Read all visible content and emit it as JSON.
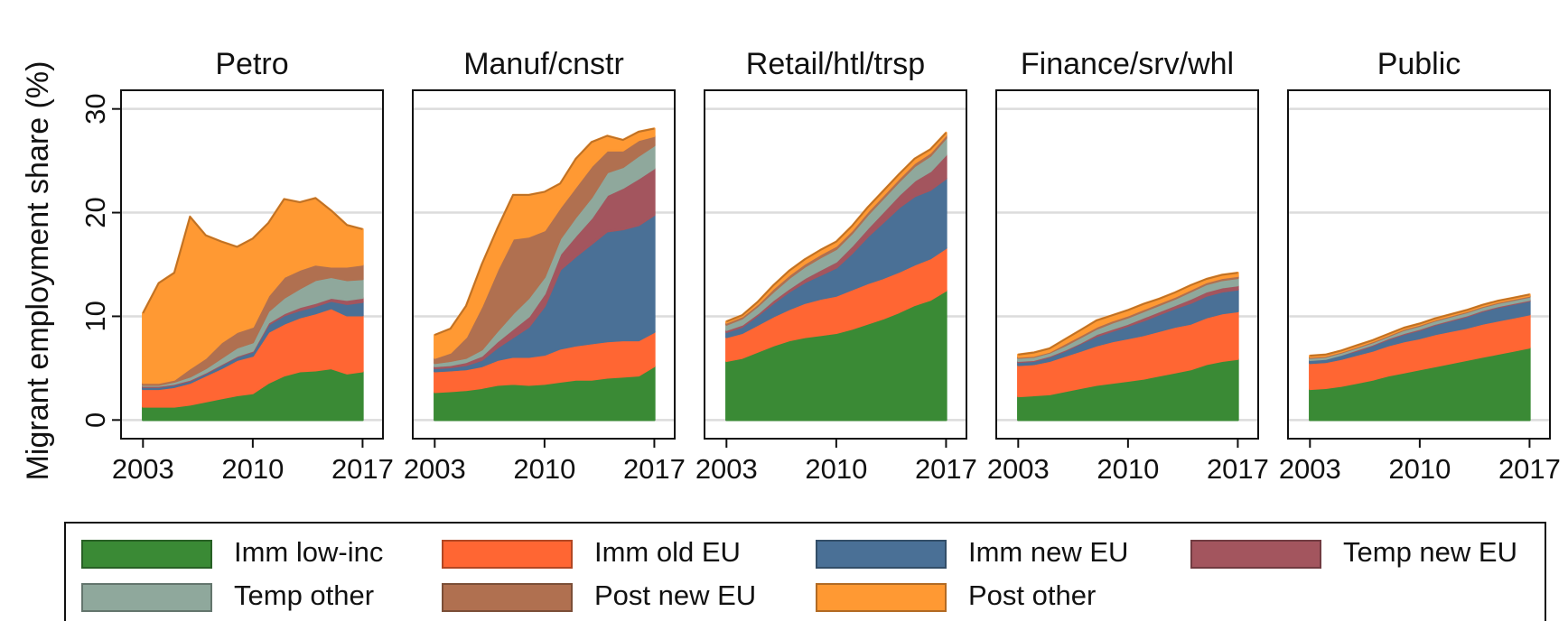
{
  "chart_data": [
    {
      "type": "area",
      "title": "Petro",
      "ylabel": "Migrant employment share (%)",
      "stacked": true,
      "grid": true,
      "x": [
        2003,
        2004,
        2005,
        2006,
        2007,
        2008,
        2009,
        2010,
        2011,
        2012,
        2013,
        2014,
        2015,
        2016,
        2017
      ],
      "xlim": [
        2001.6,
        2018.3
      ],
      "ylim": [
        -1.8,
        31.8
      ],
      "xticks": [
        2003,
        2010,
        2017
      ],
      "yticks": [
        0,
        10,
        20,
        30
      ],
      "series": [
        {
          "name": "Imm low-inc",
          "color": "#3a8a35",
          "values": [
            1.3,
            1.3,
            1.3,
            1.5,
            1.8,
            2.1,
            2.4,
            2.6,
            3.6,
            4.3,
            4.7,
            4.8,
            5.0,
            4.5,
            4.7
          ]
        },
        {
          "name": "Imm old EU",
          "color": "#ff6633",
          "values": [
            1.7,
            1.7,
            1.9,
            2.1,
            2.5,
            2.9,
            3.4,
            3.6,
            4.9,
            5.0,
            5.2,
            5.5,
            5.8,
            5.6,
            5.4
          ]
        },
        {
          "name": "Imm new EU",
          "color": "#4a7096",
          "values": [
            0.2,
            0.2,
            0.2,
            0.2,
            0.2,
            0.3,
            0.3,
            0.4,
            0.7,
            0.8,
            0.7,
            0.7,
            0.7,
            1.1,
            1.3
          ]
        },
        {
          "name": "Temp new EU",
          "color": "#a3555e",
          "values": [
            0.1,
            0.1,
            0.1,
            0.1,
            0.1,
            0.1,
            0.1,
            0.1,
            0.2,
            0.2,
            0.3,
            0.3,
            0.3,
            0.4,
            0.4
          ]
        },
        {
          "name": "Temp other",
          "color": "#8fa89c",
          "values": [
            0.1,
            0.1,
            0.2,
            0.3,
            0.4,
            0.6,
            0.8,
            0.8,
            1.1,
            1.5,
            1.8,
            2.2,
            2.0,
            1.9,
            1.8
          ]
        },
        {
          "name": "Post new EU",
          "color": "#b07050",
          "values": [
            0.2,
            0.2,
            0.2,
            0.8,
            1.0,
            1.5,
            1.5,
            1.5,
            1.5,
            2.0,
            1.8,
            1.5,
            1.0,
            1.3,
            1.4
          ]
        },
        {
          "name": "Post other",
          "color": "#ff9933",
          "values": [
            6.7,
            9.6,
            10.3,
            14.6,
            11.8,
            9.7,
            8.2,
            8.5,
            7.0,
            7.5,
            6.5,
            6.4,
            5.4,
            4.0,
            3.4
          ]
        }
      ]
    },
    {
      "type": "area",
      "title": "Manuf/cnstr",
      "stacked": true,
      "grid": true,
      "x": [
        2003,
        2004,
        2005,
        2006,
        2007,
        2008,
        2009,
        2010,
        2011,
        2012,
        2013,
        2014,
        2015,
        2016,
        2017
      ],
      "xlim": [
        2001.6,
        2018.3
      ],
      "ylim": [
        -1.8,
        31.8
      ],
      "xticks": [
        2003,
        2010,
        2017
      ],
      "yticks": [
        0,
        10,
        20,
        30
      ],
      "series": [
        {
          "name": "Imm low-inc",
          "color": "#3a8a35",
          "values": [
            2.7,
            2.8,
            2.9,
            3.1,
            3.4,
            3.5,
            3.4,
            3.5,
            3.7,
            3.9,
            3.9,
            4.1,
            4.2,
            4.3,
            5.2
          ]
        },
        {
          "name": "Imm old EU",
          "color": "#ff6633",
          "values": [
            2.0,
            2.0,
            2.0,
            2.1,
            2.4,
            2.6,
            2.7,
            2.8,
            3.2,
            3.3,
            3.5,
            3.5,
            3.5,
            3.4,
            3.3
          ]
        },
        {
          "name": "Imm new EU",
          "color": "#4a7096",
          "values": [
            0.3,
            0.3,
            0.4,
            0.6,
            1.2,
            1.9,
            2.9,
            4.7,
            7.6,
            8.6,
            9.6,
            10.6,
            10.7,
            11.1,
            11.3
          ]
        },
        {
          "name": "Temp new EU",
          "color": "#a3555e",
          "values": [
            0.2,
            0.2,
            0.3,
            0.4,
            0.6,
            0.8,
            1.0,
            1.2,
            1.5,
            2.0,
            2.5,
            3.5,
            4.0,
            4.5,
            4.5
          ]
        },
        {
          "name": "Temp other",
          "color": "#8fa89c",
          "values": [
            0.3,
            0.4,
            0.4,
            0.6,
            1.0,
            1.5,
            1.8,
            1.6,
            1.5,
            1.8,
            2.0,
            2.2,
            2.0,
            2.2,
            2.2
          ]
        },
        {
          "name": "Post new EU",
          "color": "#b07050",
          "values": [
            0.5,
            0.8,
            2.0,
            4.2,
            5.9,
            7.2,
            5.9,
            4.5,
            3.0,
            2.9,
            3.0,
            2.1,
            1.6,
            1.5,
            0.9
          ]
        },
        {
          "name": "Post other",
          "color": "#ff9933",
          "values": [
            2.2,
            2.3,
            3.0,
            4.0,
            4.0,
            4.2,
            4.0,
            3.7,
            2.3,
            2.7,
            2.3,
            1.4,
            1.0,
            0.8,
            0.7
          ]
        }
      ]
    },
    {
      "type": "area",
      "title": "Retail/htl/trsp",
      "stacked": true,
      "grid": true,
      "x": [
        2003,
        2004,
        2005,
        2006,
        2007,
        2008,
        2009,
        2010,
        2011,
        2012,
        2013,
        2014,
        2015,
        2016,
        2017
      ],
      "xlim": [
        2001.6,
        2018.3
      ],
      "ylim": [
        -1.8,
        31.8
      ],
      "xticks": [
        2003,
        2010,
        2017
      ],
      "yticks": [
        0,
        10,
        20,
        30
      ],
      "series": [
        {
          "name": "Imm low-inc",
          "color": "#3a8a35",
          "values": [
            5.7,
            6.0,
            6.6,
            7.2,
            7.7,
            8.0,
            8.2,
            8.4,
            8.8,
            9.3,
            9.8,
            10.4,
            11.1,
            11.6,
            12.5
          ]
        },
        {
          "name": "Imm old EU",
          "color": "#ff6633",
          "values": [
            2.3,
            2.4,
            2.6,
            2.8,
            3.0,
            3.3,
            3.5,
            3.6,
            3.8,
            3.9,
            3.9,
            3.9,
            3.9,
            4.0,
            4.1
          ]
        },
        {
          "name": "Imm new EU",
          "color": "#4a7096",
          "values": [
            0.5,
            0.6,
            0.9,
            1.3,
            1.7,
            2.0,
            2.3,
            2.7,
            3.5,
            4.5,
            5.4,
            6.2,
            6.6,
            6.6,
            6.7
          ]
        },
        {
          "name": "Temp new EU",
          "color": "#a3555e",
          "values": [
            0.2,
            0.2,
            0.2,
            0.3,
            0.3,
            0.4,
            0.5,
            0.6,
            0.7,
            0.8,
            1.0,
            1.2,
            1.5,
            1.8,
            2.3
          ]
        },
        {
          "name": "Temp other",
          "color": "#8fa89c",
          "values": [
            0.5,
            0.6,
            0.7,
            0.8,
            1.0,
            1.1,
            1.2,
            1.2,
            1.2,
            1.3,
            1.3,
            1.3,
            1.4,
            1.5,
            1.6
          ]
        },
        {
          "name": "Post new EU",
          "color": "#b07050",
          "values": [
            0.2,
            0.2,
            0.2,
            0.3,
            0.3,
            0.3,
            0.3,
            0.3,
            0.3,
            0.3,
            0.3,
            0.3,
            0.3,
            0.3,
            0.3
          ]
        },
        {
          "name": "Post other",
          "color": "#ff9933",
          "values": [
            0.1,
            0.1,
            0.2,
            0.3,
            0.4,
            0.4,
            0.4,
            0.4,
            0.4,
            0.4,
            0.4,
            0.4,
            0.4,
            0.3,
            0.2
          ]
        }
      ]
    },
    {
      "type": "area",
      "title": "Finance/srv/whl",
      "stacked": true,
      "grid": true,
      "x": [
        2003,
        2004,
        2005,
        2006,
        2007,
        2008,
        2009,
        2010,
        2011,
        2012,
        2013,
        2014,
        2015,
        2016,
        2017
      ],
      "xlim": [
        2001.6,
        2018.3
      ],
      "ylim": [
        -1.8,
        31.8
      ],
      "xticks": [
        2003,
        2010,
        2017
      ],
      "yticks": [
        0,
        10,
        20,
        30
      ],
      "series": [
        {
          "name": "Imm low-inc",
          "color": "#3a8a35",
          "values": [
            2.3,
            2.4,
            2.5,
            2.8,
            3.1,
            3.4,
            3.6,
            3.8,
            4.0,
            4.3,
            4.6,
            4.9,
            5.4,
            5.7,
            5.9
          ]
        },
        {
          "name": "Imm old EU",
          "color": "#ff6633",
          "values": [
            3.0,
            3.0,
            3.2,
            3.4,
            3.6,
            3.8,
            4.0,
            4.1,
            4.2,
            4.3,
            4.4,
            4.4,
            4.5,
            4.6,
            4.6
          ]
        },
        {
          "name": "Imm new EU",
          "color": "#4a7096",
          "values": [
            0.3,
            0.3,
            0.4,
            0.5,
            0.7,
            0.9,
            1.0,
            1.2,
            1.4,
            1.6,
            1.8,
            2.0,
            2.1,
            2.1,
            2.1
          ]
        },
        {
          "name": "Temp new EU",
          "color": "#a3555e",
          "values": [
            0.1,
            0.1,
            0.1,
            0.1,
            0.1,
            0.2,
            0.2,
            0.2,
            0.3,
            0.3,
            0.3,
            0.4,
            0.4,
            0.4,
            0.4
          ]
        },
        {
          "name": "Temp other",
          "color": "#8fa89c",
          "values": [
            0.3,
            0.3,
            0.3,
            0.4,
            0.5,
            0.5,
            0.6,
            0.6,
            0.6,
            0.6,
            0.6,
            0.7,
            0.7,
            0.7,
            0.7
          ]
        },
        {
          "name": "Post new EU",
          "color": "#b07050",
          "values": [
            0.1,
            0.1,
            0.1,
            0.2,
            0.2,
            0.2,
            0.2,
            0.2,
            0.2,
            0.2,
            0.2,
            0.2,
            0.2,
            0.2,
            0.2
          ]
        },
        {
          "name": "Post other",
          "color": "#ff9933",
          "values": [
            0.2,
            0.3,
            0.3,
            0.4,
            0.5,
            0.6,
            0.5,
            0.5,
            0.5,
            0.4,
            0.4,
            0.4,
            0.3,
            0.3,
            0.3
          ]
        }
      ]
    },
    {
      "type": "area",
      "title": "Public",
      "stacked": true,
      "grid": true,
      "x": [
        2003,
        2004,
        2005,
        2006,
        2007,
        2008,
        2009,
        2010,
        2011,
        2012,
        2013,
        2014,
        2015,
        2016,
        2017
      ],
      "xlim": [
        2001.6,
        2018.3
      ],
      "ylim": [
        -1.8,
        31.8
      ],
      "xticks": [
        2003,
        2010,
        2017
      ],
      "yticks": [
        0,
        10,
        20,
        30
      ],
      "series": [
        {
          "name": "Imm low-inc",
          "color": "#3a8a35",
          "values": [
            3.0,
            3.1,
            3.3,
            3.6,
            3.9,
            4.3,
            4.6,
            4.9,
            5.2,
            5.5,
            5.8,
            6.1,
            6.4,
            6.7,
            7.0
          ]
        },
        {
          "name": "Imm old EU",
          "color": "#ff6633",
          "values": [
            2.5,
            2.5,
            2.6,
            2.7,
            2.8,
            2.9,
            3.0,
            3.0,
            3.1,
            3.1,
            3.1,
            3.2,
            3.2,
            3.2,
            3.2
          ]
        },
        {
          "name": "Imm new EU",
          "color": "#4a7096",
          "values": [
            0.3,
            0.3,
            0.4,
            0.4,
            0.5,
            0.6,
            0.7,
            0.8,
            0.9,
            1.0,
            1.1,
            1.2,
            1.3,
            1.3,
            1.3
          ]
        },
        {
          "name": "Temp new EU",
          "color": "#a3555e",
          "values": [
            0.0,
            0.0,
            0.0,
            0.1,
            0.1,
            0.1,
            0.1,
            0.1,
            0.1,
            0.1,
            0.1,
            0.1,
            0.1,
            0.1,
            0.1
          ]
        },
        {
          "name": "Temp other",
          "color": "#8fa89c",
          "values": [
            0.2,
            0.2,
            0.2,
            0.2,
            0.2,
            0.2,
            0.3,
            0.3,
            0.3,
            0.3,
            0.3,
            0.3,
            0.3,
            0.3,
            0.3
          ]
        },
        {
          "name": "Post new EU",
          "color": "#b07050",
          "values": [
            0.1,
            0.1,
            0.1,
            0.1,
            0.1,
            0.1,
            0.1,
            0.1,
            0.1,
            0.1,
            0.1,
            0.1,
            0.1,
            0.1,
            0.1
          ]
        },
        {
          "name": "Post other",
          "color": "#ff9933",
          "values": [
            0.1,
            0.1,
            0.1,
            0.1,
            0.1,
            0.1,
            0.1,
            0.1,
            0.1,
            0.1,
            0.1,
            0.1,
            0.1,
            0.1,
            0.1
          ]
        }
      ]
    }
  ]
}
